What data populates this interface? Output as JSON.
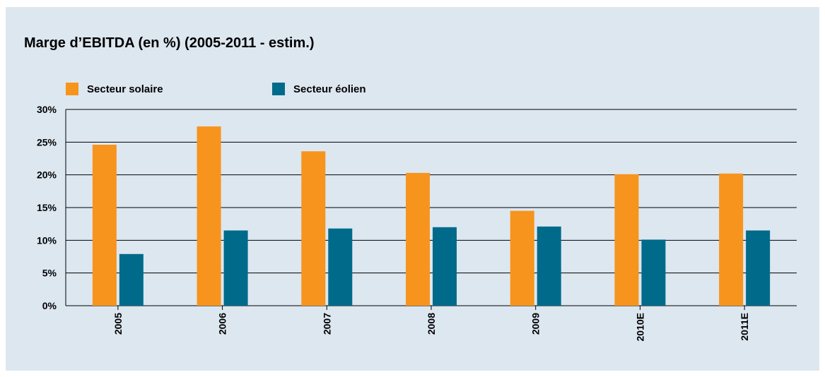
{
  "colors": {
    "background": "#dde7f0",
    "solar": "#f7941d",
    "wind": "#006a8a",
    "grid": "#000000"
  },
  "chart_data": {
    "type": "bar",
    "title": "Marge d’EBITDA (en %) (2005-2011 - estim.)",
    "xlabel": "",
    "ylabel": "",
    "ylim": [
      0,
      30
    ],
    "yticks": [
      0,
      5,
      10,
      15,
      20,
      25,
      30
    ],
    "ytick_labels": [
      "0%",
      "5%",
      "10%",
      "15%",
      "20%",
      "25%",
      "30%"
    ],
    "grid": true,
    "legend_position": "top-left",
    "categories": [
      "2005",
      "2006",
      "2007",
      "2008",
      "2009",
      "2010E",
      "2011E"
    ],
    "series": [
      {
        "name": "Secteur solaire",
        "color": "#f7941d",
        "values": [
          24.6,
          27.4,
          23.6,
          20.3,
          14.5,
          20.1,
          20.2
        ]
      },
      {
        "name": "Secteur éolien",
        "color": "#006a8a",
        "values": [
          7.9,
          11.5,
          11.8,
          12.0,
          12.1,
          10.1,
          11.5
        ]
      }
    ]
  }
}
